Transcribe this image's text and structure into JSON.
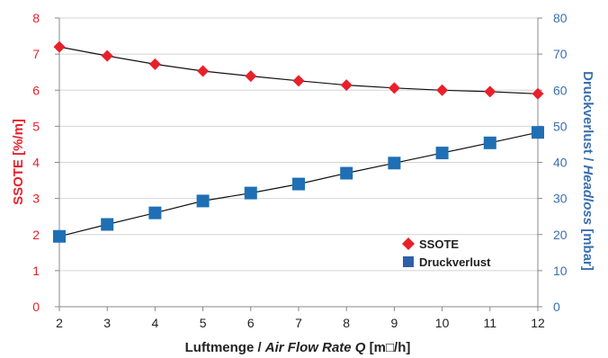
{
  "chart_data": {
    "type": "line",
    "x": [
      2,
      3,
      4,
      5,
      6,
      7,
      8,
      9,
      10,
      11,
      12
    ],
    "xlim": [
      2,
      12
    ],
    "xticks": [
      2,
      3,
      4,
      5,
      6,
      7,
      8,
      9,
      10,
      11,
      12
    ],
    "xlabel_main": "Luftmenge / ",
    "xlabel_italic": "Air Flow Rate Q",
    "xlabel_unit": " [m□/h]",
    "ylabel_left": "SSOTE [%/m]",
    "ylim_left": [
      0,
      8
    ],
    "yticks_left": [
      0,
      1,
      2,
      3,
      4,
      5,
      6,
      7,
      8
    ],
    "ylabel_right_main": "Druckverlust / ",
    "ylabel_right_italic": "Headloss",
    "ylabel_right_unit": " [mbar]",
    "ylim_right": [
      0,
      80
    ],
    "yticks_right": [
      0,
      10,
      20,
      30,
      40,
      50,
      60,
      70,
      80
    ],
    "grid": "horizontal",
    "legend_position": "bottom-right",
    "series": [
      {
        "name": "SSOTE",
        "axis": "left",
        "marker": "diamond",
        "color": "#e8202a",
        "values": [
          7.2,
          6.95,
          6.72,
          6.53,
          6.39,
          6.26,
          6.14,
          6.06,
          6.0,
          5.96,
          5.9
        ]
      },
      {
        "name": "Druckverlust",
        "axis": "right",
        "marker": "square",
        "color": "#1f6fb4",
        "values": [
          19.5,
          22.8,
          26.0,
          29.3,
          31.5,
          34.0,
          37.0,
          39.8,
          42.6,
          45.4,
          48.3
        ]
      }
    ],
    "trendline_color": "#111111"
  }
}
